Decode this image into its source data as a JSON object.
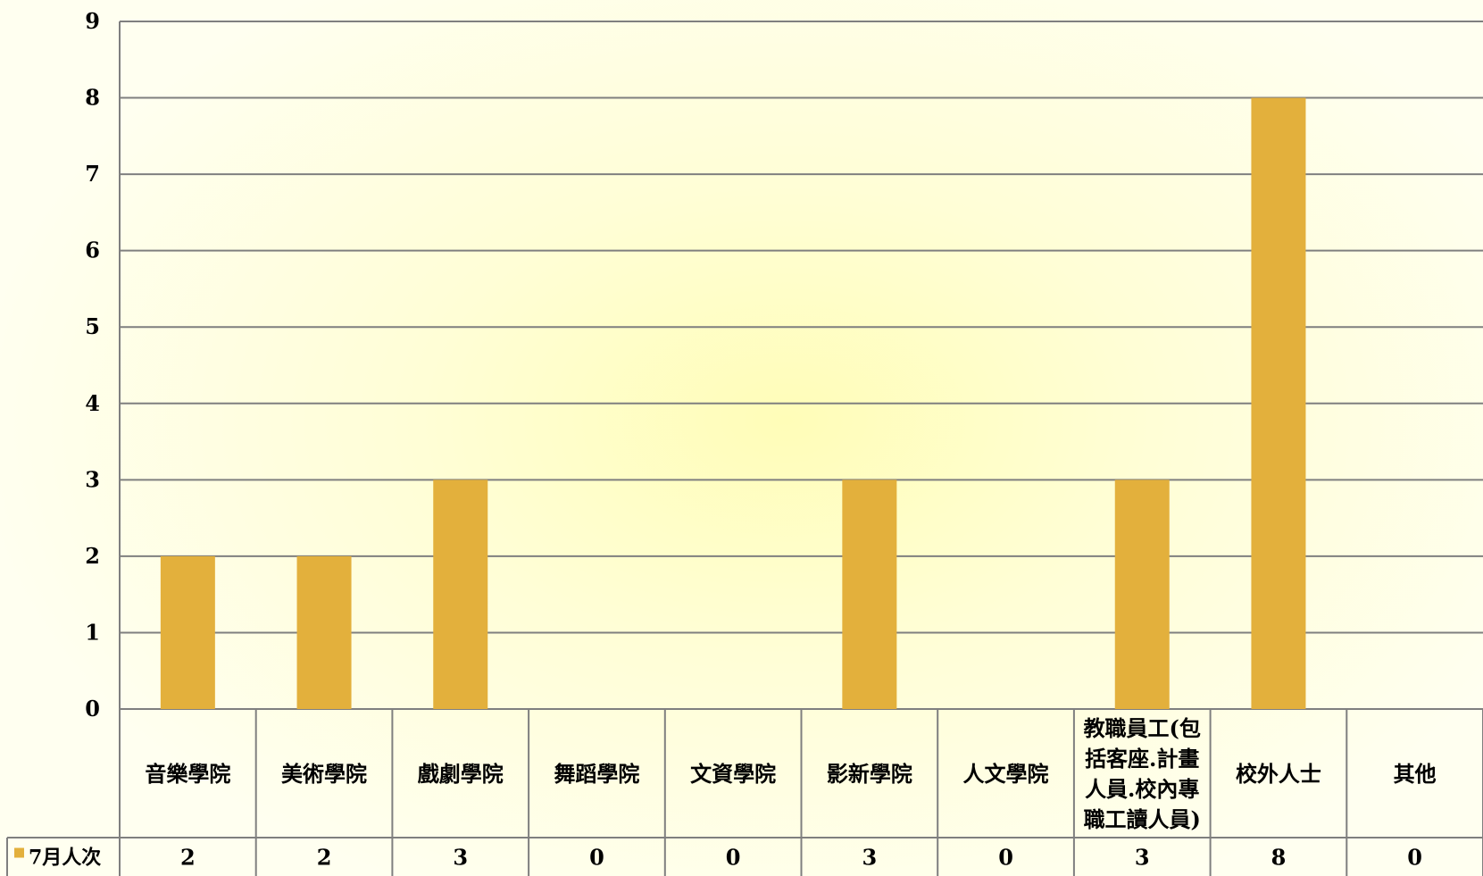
{
  "colors": {
    "bar": "#e3b03c",
    "grid": "#7f7f7f"
  },
  "chart_data": {
    "type": "bar",
    "categories": [
      "音樂學院",
      "美術學院",
      "戲劇學院",
      "舞蹈學院",
      "文資學院",
      "影新學院",
      "人文學院",
      [
        "教職員工(包",
        "括客座.計畫",
        "人員.校內專",
        "職工讀人員)"
      ],
      "校外人士",
      "其他"
    ],
    "series": [
      {
        "name": "7月人次",
        "values": [
          2,
          2,
          3,
          0,
          0,
          3,
          0,
          3,
          8,
          0
        ]
      }
    ],
    "ylim": [
      0,
      9
    ],
    "yticks": [
      0,
      1,
      2,
      3,
      4,
      5,
      6,
      7,
      8,
      9
    ],
    "grid": true,
    "legend": "data-table-row",
    "data_table": true
  }
}
